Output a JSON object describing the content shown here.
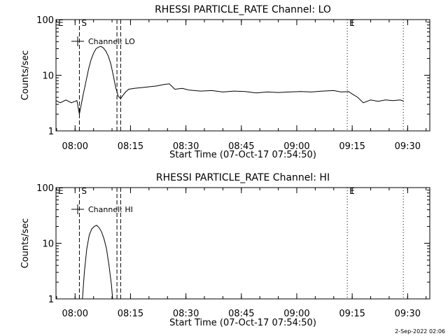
{
  "footer_date": "2-Sep-2022 02:06",
  "chart_data": [
    {
      "type": "line",
      "title": "RHESSI PARTICLE_RATE Channel: LO",
      "xlabel": "Start Time (07-Oct-17 07:54:50)",
      "ylabel": "Counts/sec",
      "yscale": "log",
      "ylim": [
        1,
        100
      ],
      "xlim": [
        "07:54:50",
        "09:36:00"
      ],
      "yticks": [
        "1",
        "10",
        "100"
      ],
      "xticks": [
        "08:00",
        "08:15",
        "08:30",
        "08:45",
        "09:00",
        "09:15",
        "09:30"
      ],
      "legend": {
        "label": "Channel: LO",
        "position": "top-left"
      },
      "markers": [
        {
          "label": "E",
          "time": "07:54:50",
          "style": "dotted"
        },
        {
          "label": "S",
          "time": "08:01:10",
          "style": "dashed"
        },
        {
          "label": "",
          "time": "08:11:20",
          "style": "dashed"
        },
        {
          "label": "",
          "time": "08:12:20",
          "style": "dashed"
        },
        {
          "label": "E",
          "time": "09:13:40",
          "style": "dotted"
        },
        {
          "label": "",
          "time": "09:28:50",
          "style": "dotted"
        }
      ],
      "series": [
        {
          "name": "Channel: LO",
          "x": [
            "07:54:50",
            "07:56:00",
            "07:57:30",
            "07:59:00",
            "08:00:30",
            "08:01:10",
            "08:01:40",
            "08:02:20",
            "08:03:00",
            "08:03:40",
            "08:04:20",
            "08:05:00",
            "08:05:40",
            "08:06:20",
            "08:07:00",
            "08:07:40",
            "08:08:20",
            "08:09:00",
            "08:09:40",
            "08:10:20",
            "08:11:00",
            "08:11:40",
            "08:12:20",
            "08:13:00",
            "08:13:40",
            "08:14:30",
            "08:16:00",
            "08:18:00",
            "08:20:00",
            "08:22:00",
            "08:24:00",
            "08:25:30",
            "08:27:00",
            "08:29:00",
            "08:31:00",
            "08:34:00",
            "08:37:00",
            "08:40:00",
            "08:43:00",
            "08:46:00",
            "08:49:00",
            "08:52:00",
            "08:55:00",
            "08:58:00",
            "09:01:00",
            "09:04:00",
            "09:07:00",
            "09:10:00",
            "09:12:00",
            "09:14:00",
            "09:15:00",
            "09:16:30",
            "09:18:00",
            "09:20:00",
            "09:22:00",
            "09:24:00",
            "09:26:00",
            "09:28:00",
            "09:29:00"
          ],
          "y": [
            3.5,
            3.2,
            3.6,
            3.2,
            3.5,
            2.0,
            3.0,
            5.0,
            8.0,
            13.0,
            19.0,
            25.0,
            30.0,
            32.0,
            33.0,
            31.0,
            27.0,
            22.0,
            16.0,
            10.0,
            6.0,
            4.2,
            3.8,
            4.4,
            5.0,
            5.6,
            5.8,
            6.0,
            6.2,
            6.4,
            6.8,
            7.0,
            5.6,
            5.8,
            5.4,
            5.2,
            5.3,
            5.0,
            5.2,
            5.1,
            4.8,
            5.0,
            4.9,
            5.0,
            5.1,
            5.0,
            5.2,
            5.3,
            5.0,
            5.1,
            4.6,
            4.0,
            3.2,
            3.6,
            3.4,
            3.6,
            3.5,
            3.6,
            3.4
          ]
        }
      ]
    },
    {
      "type": "line",
      "title": "RHESSI PARTICLE_RATE Channel: HI",
      "xlabel": "Start Time (07-Oct-17 07:54:50)",
      "ylabel": "Counts/sec",
      "yscale": "log",
      "ylim": [
        1,
        100
      ],
      "xlim": [
        "07:54:50",
        "09:36:00"
      ],
      "yticks": [
        "1",
        "10",
        "100"
      ],
      "xticks": [
        "08:00",
        "08:15",
        "08:30",
        "08:45",
        "09:00",
        "09:15",
        "09:30"
      ],
      "legend": {
        "label": "Channel: HI",
        "position": "top-left"
      },
      "markers": [
        {
          "label": "E",
          "time": "07:54:50",
          "style": "dotted"
        },
        {
          "label": "S",
          "time": "08:01:10",
          "style": "dashed"
        },
        {
          "label": "",
          "time": "08:11:20",
          "style": "dashed"
        },
        {
          "label": "",
          "time": "08:12:20",
          "style": "dashed"
        },
        {
          "label": "E",
          "time": "09:13:40",
          "style": "dotted"
        },
        {
          "label": "",
          "time": "09:28:50",
          "style": "dotted"
        }
      ],
      "series": [
        {
          "name": "Channel: HI",
          "x": [
            "08:02:00",
            "08:02:30",
            "08:03:10",
            "08:03:50",
            "08:04:30",
            "08:05:10",
            "08:05:50",
            "08:06:30",
            "08:07:10",
            "08:07:50",
            "08:08:30",
            "08:09:10",
            "08:09:50",
            "08:10:10"
          ],
          "y": [
            1.0,
            3.0,
            8.0,
            14.0,
            18.0,
            20.0,
            21.0,
            19.0,
            16.0,
            12.0,
            8.0,
            4.0,
            1.8,
            1.0
          ]
        }
      ]
    }
  ]
}
